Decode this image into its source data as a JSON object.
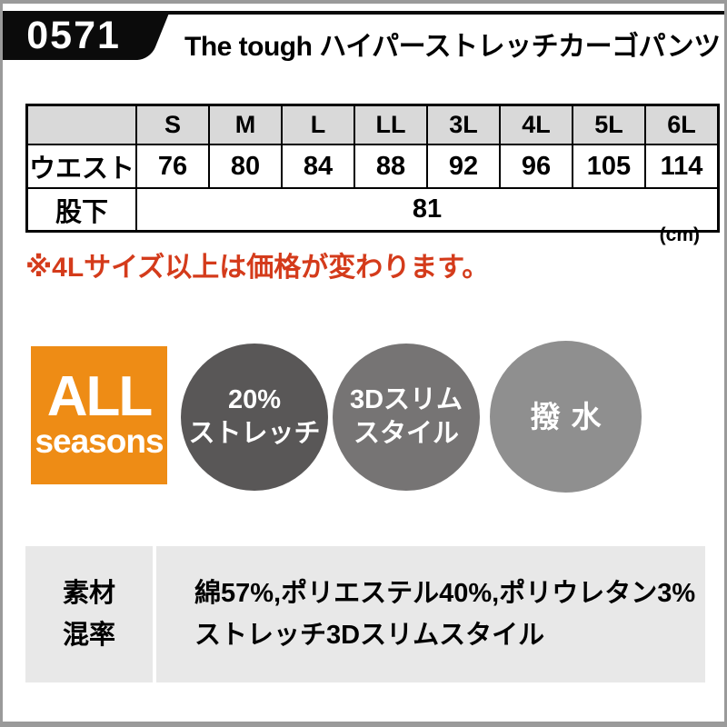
{
  "header": {
    "product_code": "0571",
    "title": "The tough ハイパーストレッチカーゴパンツ"
  },
  "size_table": {
    "columns": [
      "S",
      "M",
      "L",
      "LL",
      "3L",
      "4L",
      "5L",
      "6L"
    ],
    "rows": [
      {
        "label": "ウエスト",
        "values": [
          "76",
          "80",
          "84",
          "88",
          "92",
          "96",
          "105",
          "114"
        ]
      },
      {
        "label": "股下",
        "span_value": "81"
      }
    ],
    "unit_note": "(cm)"
  },
  "price_note": "※4Lサイズ以上は価格が変わります。",
  "feature_badges": {
    "season_badge": {
      "line1": "ALL",
      "line2": "seasons",
      "color": "#ee8c15"
    },
    "circles": [
      {
        "line1": "20%",
        "line2": "ストレッチ",
        "color": "#595757"
      },
      {
        "line1": "3Dスリム",
        "line2": "スタイル",
        "color": "#767474"
      },
      {
        "line1": "撥水",
        "line2": "",
        "color": "#8f8f8f"
      }
    ]
  },
  "material": {
    "label_line1": "素材",
    "label_line2": "混率",
    "line1": "綿57%,ポリエステル40%,ポリウレタン3%",
    "line2": "ストレッチ3Dスリムスタイル"
  },
  "colors": {
    "black": "#0b0b0b",
    "note_red": "#d43b1b",
    "table_header_gray": "#d9d9d9",
    "material_bg_gray": "#e8e8e8",
    "frame_gray": "#9a9a9a",
    "accent_orange": "#ee8c15"
  }
}
